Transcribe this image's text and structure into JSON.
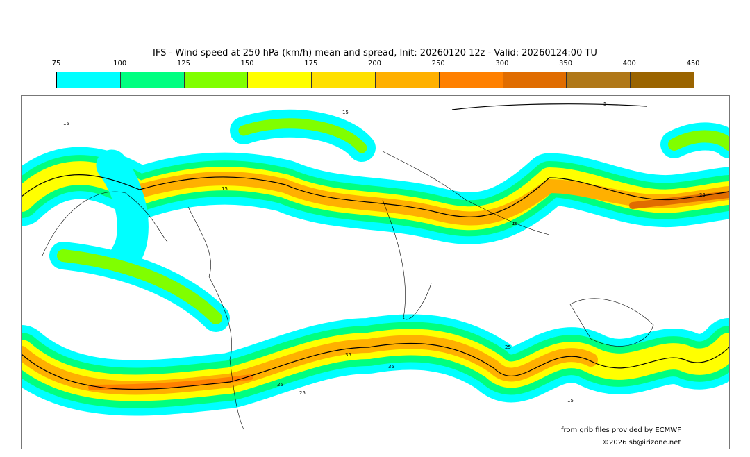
{
  "title": "IFS - Wind speed at 250 hPa (km/h) mean and spread, Init: 20260120 12z - Valid: 20260124:00 TU",
  "colorbar": {
    "ticks": [
      "75",
      "100",
      "125",
      "150",
      "175",
      "200",
      "250",
      "300",
      "350",
      "400",
      "450"
    ],
    "colors": [
      "#00ffff",
      "#00ff80",
      "#80ff00",
      "#ffff00",
      "#ffe000",
      "#ffb000",
      "#ff8000",
      "#e06c00",
      "#b07818",
      "#9a6400"
    ]
  },
  "contour_labels": [
    "15",
    "25",
    "35",
    "5"
  ],
  "credits": {
    "source": "from grib files provided by ECMWF",
    "copyright": "©2026 sb@irizone.net"
  }
}
